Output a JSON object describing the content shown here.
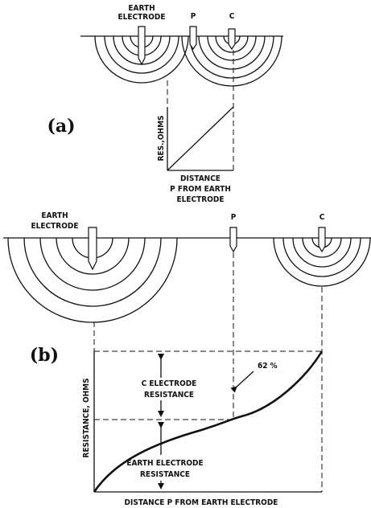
{
  "panel_a": {
    "label": "(a)",
    "earth_electrode": [
      "EARTH",
      "ELECTRODE"
    ],
    "p_electrode": "P",
    "c_electrode": "C",
    "y_axis_label": "RES.,OHMS",
    "x_axis_label": [
      "DISTANCE",
      "P FROM EARTH",
      "ELECTRODE"
    ]
  },
  "panel_b": {
    "label": "(b)",
    "earth_electrode": [
      "EARTH",
      "ELECTRODE"
    ],
    "p_electrode": "P",
    "c_electrode": "C",
    "c_resistance_label": [
      "C ELECTRODE",
      "RESISTANCE"
    ],
    "percent_label": "62 %",
    "earth_resistance_label": [
      "EARTH ELECTRODE",
      "RESISTANCE"
    ],
    "y_axis_label": "RESISTANCE, OHMS",
    "x_axis_label": "DISTANCE  P FROM EARTH ELECTRODE"
  }
}
